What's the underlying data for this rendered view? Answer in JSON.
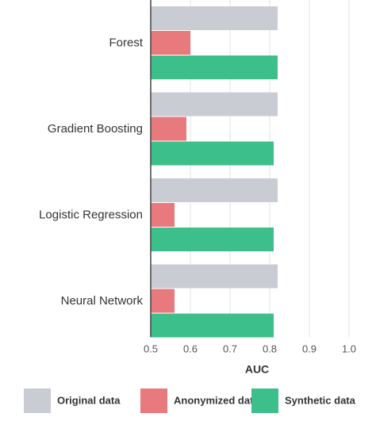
{
  "chart_data": {
    "type": "bar",
    "orientation": "horizontal",
    "x_label": "AUC",
    "categories": [
      "Forest",
      "Gradient Boosting",
      "Logistic Regression",
      "Neural Network"
    ],
    "series": [
      {
        "name": "Original data",
        "color": "#c9ccd3",
        "values": [
          0.82,
          0.82,
          0.82,
          0.82
        ]
      },
      {
        "name": "Anonymized data",
        "color": "#e8797c",
        "values": [
          0.6,
          0.59,
          0.56,
          0.56
        ]
      },
      {
        "name": "Synthetic data",
        "color": "#3dbf8b",
        "values": [
          0.82,
          0.81,
          0.81,
          0.81
        ]
      }
    ],
    "xlim": [
      0.5,
      1.0
    ],
    "xticks": [
      0.5,
      0.6,
      0.7,
      0.8,
      0.9,
      {
        "value": 1,
        "label": "1.0"
      }
    ],
    "grid": true
  }
}
